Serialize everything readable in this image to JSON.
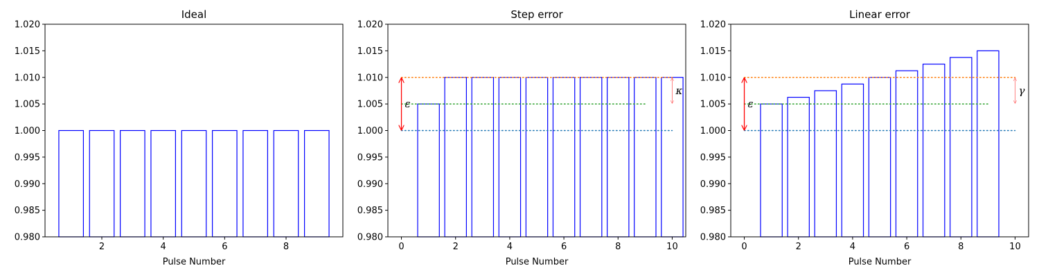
{
  "chart_data": [
    {
      "type": "bar",
      "title": "Ideal",
      "xlabel": "Pulse Number",
      "ylabel": "",
      "xlim": [
        0.15,
        9.85
      ],
      "ylim": [
        0.98,
        1.02
      ],
      "xticks": [
        2,
        4,
        6,
        8
      ],
      "yticks": [
        0.98,
        0.985,
        0.99,
        0.995,
        1.0,
        1.005,
        1.01,
        1.015,
        1.02
      ],
      "bar_width": 0.8,
      "bar_color": "#0000ff",
      "grid": false,
      "x": [
        1,
        2,
        3,
        4,
        5,
        6,
        7,
        8,
        9
      ],
      "values": [
        1.0,
        1.0,
        1.0,
        1.0,
        1.0,
        1.0,
        1.0,
        1.0,
        1.0
      ],
      "reference_lines": [],
      "annotations": []
    },
    {
      "type": "bar",
      "title": "Step error",
      "xlabel": "Pulse Number",
      "ylabel": "",
      "xlim": [
        -0.5,
        10.5
      ],
      "ylim": [
        0.98,
        1.02
      ],
      "xticks": [
        0,
        2,
        4,
        6,
        8,
        10
      ],
      "yticks": [
        0.98,
        0.985,
        0.99,
        0.995,
        1.0,
        1.005,
        1.01,
        1.015,
        1.02
      ],
      "bar_width": 0.8,
      "bar_color": "#0000ff",
      "grid": false,
      "x": [
        1,
        2,
        3,
        4,
        5,
        6,
        7,
        8,
        9,
        10
      ],
      "values": [
        1.005,
        1.01,
        1.01,
        1.01,
        1.01,
        1.01,
        1.01,
        1.01,
        1.01,
        1.01
      ],
      "reference_lines": [
        {
          "y": 1.01,
          "x0": 0,
          "x1": 10,
          "color": "#ff7f0e",
          "style": "dotted"
        },
        {
          "y": 1.005,
          "x0": 0,
          "x1": 9,
          "color": "#2ca02c",
          "style": "dotted"
        },
        {
          "y": 1.0,
          "x0": 0,
          "x1": 10,
          "color": "#1f77b4",
          "style": "dotted"
        }
      ],
      "annotations": [
        {
          "label": "ε",
          "x": 0,
          "y0": 1.0,
          "y1": 1.01,
          "color": "#ff0000"
        },
        {
          "label": "κ",
          "x": 10,
          "y0": 1.005,
          "y1": 1.01,
          "color": "#ff6666"
        }
      ]
    },
    {
      "type": "bar",
      "title": "Linear error",
      "xlabel": "Pulse Number",
      "ylabel": "",
      "xlim": [
        -0.5,
        10.5
      ],
      "ylim": [
        0.98,
        1.02
      ],
      "xticks": [
        0,
        2,
        4,
        6,
        8,
        10
      ],
      "yticks": [
        0.98,
        0.985,
        0.99,
        0.995,
        1.0,
        1.005,
        1.01,
        1.015,
        1.02
      ],
      "bar_width": 0.8,
      "bar_color": "#0000ff",
      "grid": false,
      "x": [
        1,
        2,
        3,
        4,
        5,
        6,
        7,
        8,
        9
      ],
      "values": [
        1.005,
        1.00625,
        1.0075,
        1.00875,
        1.01,
        1.01125,
        1.0125,
        1.01375,
        1.015
      ],
      "reference_lines": [
        {
          "y": 1.01,
          "x0": 0,
          "x1": 10,
          "color": "#ff7f0e",
          "style": "dotted"
        },
        {
          "y": 1.005,
          "x0": 0,
          "x1": 9,
          "color": "#2ca02c",
          "style": "dotted"
        },
        {
          "y": 1.0,
          "x0": 0,
          "x1": 10,
          "color": "#1f77b4",
          "style": "dotted"
        }
      ],
      "annotations": [
        {
          "label": "ε",
          "x": 0,
          "y0": 1.0,
          "y1": 1.01,
          "color": "#ff0000"
        },
        {
          "label": "γ",
          "x": 10,
          "y0": 1.005,
          "y1": 1.01,
          "color": "#ff6666"
        }
      ]
    }
  ]
}
